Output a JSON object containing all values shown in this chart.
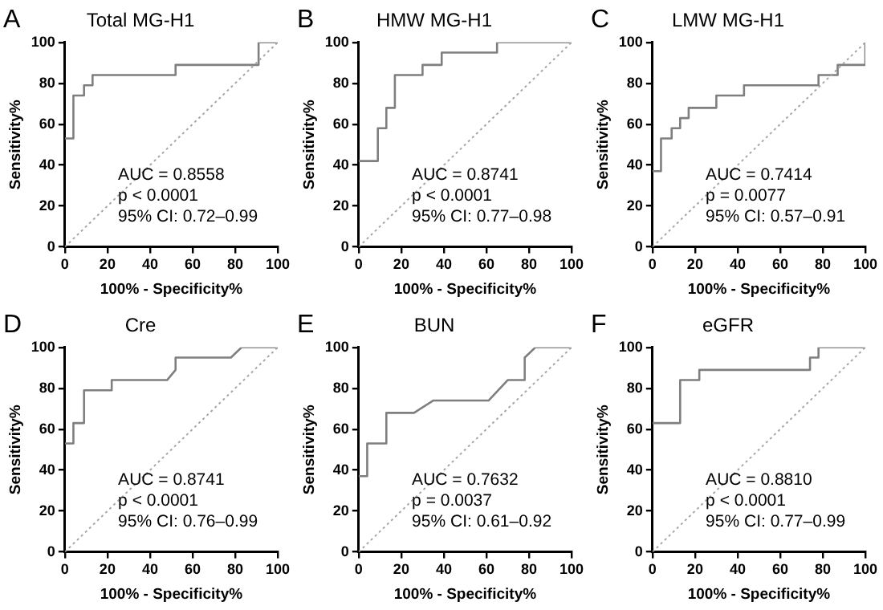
{
  "chart_data": [
    {
      "type": "line",
      "title": "Total MG-H1",
      "xlabel": "100% - Specificity%",
      "ylabel": "Sensitivity%",
      "xlim": [
        0,
        100
      ],
      "ylim": [
        0,
        100
      ],
      "xticks": [
        0,
        20,
        40,
        60,
        80,
        100
      ],
      "yticks": [
        0,
        20,
        40,
        60,
        80,
        100
      ],
      "grid": false,
      "marker": "none",
      "annotations": [
        "A",
        "AUC = 0.8558",
        "p < 0.0001",
        "95% CI: 0.72–0.99"
      ],
      "series": [
        {
          "color": "#7f7f7f",
          "line_style": "solid",
          "x": [
            0,
            4,
            4,
            9,
            9,
            13,
            13,
            52,
            52,
            91,
            91,
            100
          ],
          "values": [
            53,
            53,
            74,
            74,
            79,
            79,
            84,
            84,
            89,
            89,
            100,
            100
          ]
        },
        {
          "color": "#a6a6a6",
          "line_style": "dotted",
          "x": [
            0,
            100
          ],
          "values": [
            0,
            100
          ]
        }
      ]
    },
    {
      "type": "line",
      "title": "HMW MG-H1",
      "xlabel": "100% - Specificity%",
      "ylabel": "Sensitivity%",
      "xlim": [
        0,
        100
      ],
      "ylim": [
        0,
        100
      ],
      "xticks": [
        0,
        20,
        40,
        60,
        80,
        100
      ],
      "yticks": [
        0,
        20,
        40,
        60,
        80,
        100
      ],
      "grid": false,
      "marker": "none",
      "annotations": [
        "B",
        "AUC = 0.8741",
        "p < 0.0001",
        "95% CI: 0.77–0.98"
      ],
      "series": [
        {
          "color": "#7f7f7f",
          "line_style": "solid",
          "x": [
            0,
            9,
            9,
            13,
            13,
            17,
            17,
            30,
            30,
            39,
            39,
            65,
            65,
            100
          ],
          "values": [
            42,
            42,
            58,
            58,
            68,
            68,
            84,
            84,
            89,
            89,
            95,
            95,
            100,
            100
          ]
        },
        {
          "color": "#a6a6a6",
          "line_style": "dotted",
          "x": [
            0,
            100
          ],
          "values": [
            0,
            100
          ]
        }
      ]
    },
    {
      "type": "line",
      "title": "LMW MG-H1",
      "xlabel": "100% - Specificity%",
      "ylabel": "Sensitivity%",
      "xlim": [
        0,
        100
      ],
      "ylim": [
        0,
        100
      ],
      "xticks": [
        0,
        20,
        40,
        60,
        80,
        100
      ],
      "yticks": [
        0,
        20,
        40,
        60,
        80,
        100
      ],
      "grid": false,
      "marker": "none",
      "annotations": [
        "C",
        "AUC = 0.7414",
        "p = 0.0077",
        "95% CI: 0.57–0.91"
      ],
      "series": [
        {
          "color": "#7f7f7f",
          "line_style": "solid",
          "x": [
            0,
            4,
            4,
            9,
            9,
            13,
            13,
            17,
            17,
            30,
            30,
            43,
            43,
            78,
            78,
            87,
            87,
            100,
            100
          ],
          "values": [
            37,
            37,
            53,
            53,
            58,
            58,
            63,
            63,
            68,
            68,
            74,
            74,
            79,
            79,
            84,
            84,
            89,
            89,
            100
          ]
        },
        {
          "color": "#a6a6a6",
          "line_style": "dotted",
          "x": [
            0,
            100
          ],
          "values": [
            0,
            100
          ]
        }
      ]
    },
    {
      "type": "line",
      "title": "Cre",
      "xlabel": "100% - Specificity%",
      "ylabel": "Sensitivity%",
      "xlim": [
        0,
        100
      ],
      "ylim": [
        0,
        100
      ],
      "xticks": [
        0,
        20,
        40,
        60,
        80,
        100
      ],
      "yticks": [
        0,
        20,
        40,
        60,
        80,
        100
      ],
      "grid": false,
      "marker": "none",
      "annotations": [
        "D",
        "AUC = 0.8741",
        "p < 0.0001",
        "95% CI: 0.76–0.99"
      ],
      "series": [
        {
          "color": "#7f7f7f",
          "line_style": "solid",
          "x": [
            0,
            4,
            4,
            9,
            9,
            22,
            22,
            48,
            52,
            52,
            78,
            83,
            100
          ],
          "values": [
            53,
            53,
            63,
            63,
            79,
            79,
            84,
            84,
            89,
            95,
            95,
            100,
            100
          ]
        },
        {
          "color": "#a6a6a6",
          "line_style": "dotted",
          "x": [
            0,
            100
          ],
          "values": [
            0,
            100
          ]
        }
      ]
    },
    {
      "type": "line",
      "title": "BUN",
      "xlabel": "100% - Specificity%",
      "ylabel": "Sensitivity%",
      "xlim": [
        0,
        100
      ],
      "ylim": [
        0,
        100
      ],
      "xticks": [
        0,
        20,
        40,
        60,
        80,
        100
      ],
      "yticks": [
        0,
        20,
        40,
        60,
        80,
        100
      ],
      "grid": false,
      "marker": "none",
      "annotations": [
        "E",
        "AUC = 0.7632",
        "p = 0.0037",
        "95% CI: 0.61–0.92"
      ],
      "series": [
        {
          "color": "#7f7f7f",
          "line_style": "solid",
          "x": [
            0,
            4,
            4,
            13,
            13,
            26,
            35,
            61,
            70,
            78,
            78,
            83,
            100
          ],
          "values": [
            37,
            37,
            53,
            53,
            68,
            68,
            74,
            74,
            84,
            84,
            95,
            100,
            100
          ]
        },
        {
          "color": "#a6a6a6",
          "line_style": "dotted",
          "x": [
            0,
            100
          ],
          "values": [
            0,
            100
          ]
        }
      ]
    },
    {
      "type": "line",
      "title": "eGFR",
      "xlabel": "100% - Specificity%",
      "ylabel": "Sensitivity%",
      "xlim": [
        0,
        100
      ],
      "ylim": [
        0,
        100
      ],
      "xticks": [
        0,
        20,
        40,
        60,
        80,
        100
      ],
      "yticks": [
        0,
        20,
        40,
        60,
        80,
        100
      ],
      "grid": false,
      "marker": "none",
      "annotations": [
        "F",
        "AUC = 0.8810",
        "p < 0.0001",
        "95% CI: 0.77–0.99"
      ],
      "series": [
        {
          "color": "#7f7f7f",
          "line_style": "solid",
          "x": [
            0,
            13,
            13,
            22,
            22,
            74,
            74,
            78,
            78,
            100
          ],
          "values": [
            63,
            63,
            84,
            84,
            89,
            89,
            95,
            95,
            100,
            100
          ]
        },
        {
          "color": "#a6a6a6",
          "line_style": "dotted",
          "x": [
            0,
            100
          ],
          "values": [
            0,
            100
          ]
        }
      ]
    }
  ]
}
